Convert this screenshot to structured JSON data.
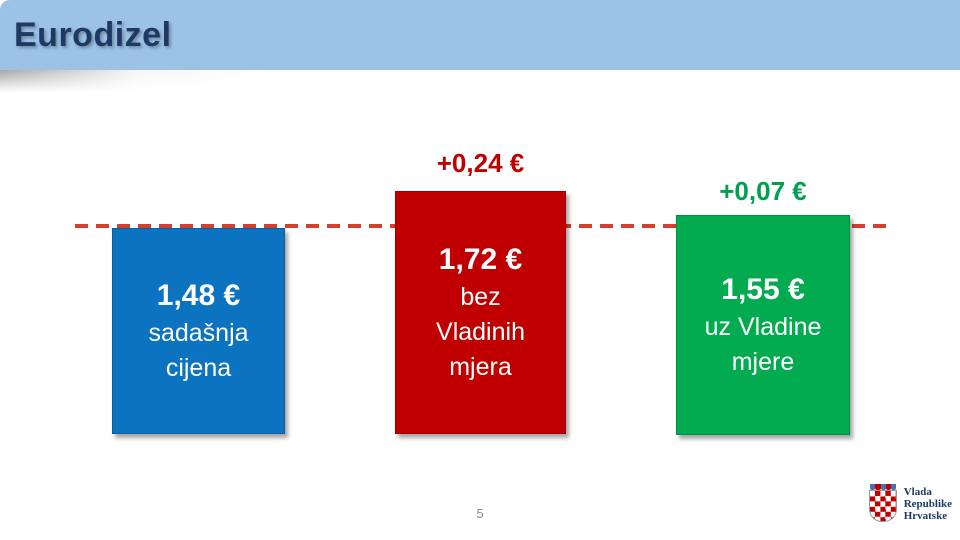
{
  "slide": {
    "title": "Eurodizel",
    "page_number": "5"
  },
  "colors": {
    "header_background": "#9CC3E6",
    "title_text": "#1F3864",
    "baseline_dash": "#D5402E",
    "bar_current": "#0B73C0",
    "bar_without_measures": "#C00000",
    "bar_with_measures": "#02AB50",
    "delta_without_measures": "#C00000",
    "delta_with_measures": "#00A050"
  },
  "bars": {
    "current": {
      "value": "1,48 €",
      "label_lines": [
        "sadašnja",
        "cijena"
      ],
      "color": "#0B73C0"
    },
    "without": {
      "value": "1,72 €",
      "label_lines": [
        "bez",
        "Vladinih",
        "mjera"
      ],
      "color": "#C00000",
      "delta": "+0,24 €",
      "delta_color": "#C00000"
    },
    "with": {
      "value": "1,55 €",
      "label_lines": [
        "uz Vladine",
        "mjere"
      ],
      "color": "#02AB50",
      "delta": "+0,07 €",
      "delta_color": "#00A050"
    }
  },
  "footer": {
    "logo_lines": [
      "Vlada",
      "Republike",
      "Hrvatske"
    ]
  },
  "chart_data": {
    "type": "bar",
    "title": "Eurodizel",
    "categories": [
      "sadašnja cijena",
      "bez Vladinih mjera",
      "uz Vladine mjere"
    ],
    "values": [
      1.48,
      1.72,
      1.55
    ],
    "value_labels": [
      "1,48 €",
      "1,72 €",
      "1,55 €"
    ],
    "bar_colors": [
      "#0B73C0",
      "#C00000",
      "#02AB50"
    ],
    "annotations": [
      {
        "bar_index": 1,
        "text": "+0,24 €",
        "color": "#C00000"
      },
      {
        "bar_index": 2,
        "text": "+0,07 €",
        "color": "#00A050"
      }
    ],
    "baseline": {
      "value": 1.48,
      "style": "dashed",
      "color": "#D5402E"
    },
    "unit": "EUR",
    "legend_position": "none",
    "grid": false
  }
}
